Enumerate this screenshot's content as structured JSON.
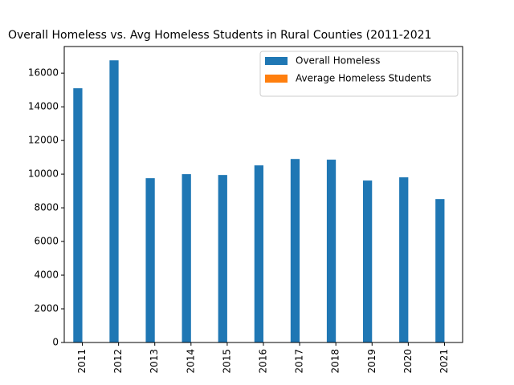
{
  "chart_data": {
    "type": "bar",
    "title": "Overall Homeless vs. Avg Homeless Students in Rural Counties (2011-2021",
    "categories": [
      "2011",
      "2012",
      "2013",
      "2014",
      "2015",
      "2016",
      "2017",
      "2018",
      "2019",
      "2020",
      "2021"
    ],
    "series": [
      {
        "name": "Overall Homeless",
        "color": "#1f77b4",
        "values": [
          15100,
          16760,
          9760,
          10000,
          9950,
          10520,
          10900,
          10860,
          9620,
          9810,
          8520
        ]
      },
      {
        "name": "Average Homeless Students",
        "color": "#ff7f0e",
        "values": [
          0,
          0,
          0,
          0,
          0,
          0,
          0,
          0,
          0,
          0,
          0
        ]
      }
    ],
    "ylim": [
      0,
      17580
    ],
    "yticks": [
      0,
      2000,
      4000,
      6000,
      8000,
      10000,
      12000,
      14000,
      16000
    ],
    "legend": "upper right"
  }
}
